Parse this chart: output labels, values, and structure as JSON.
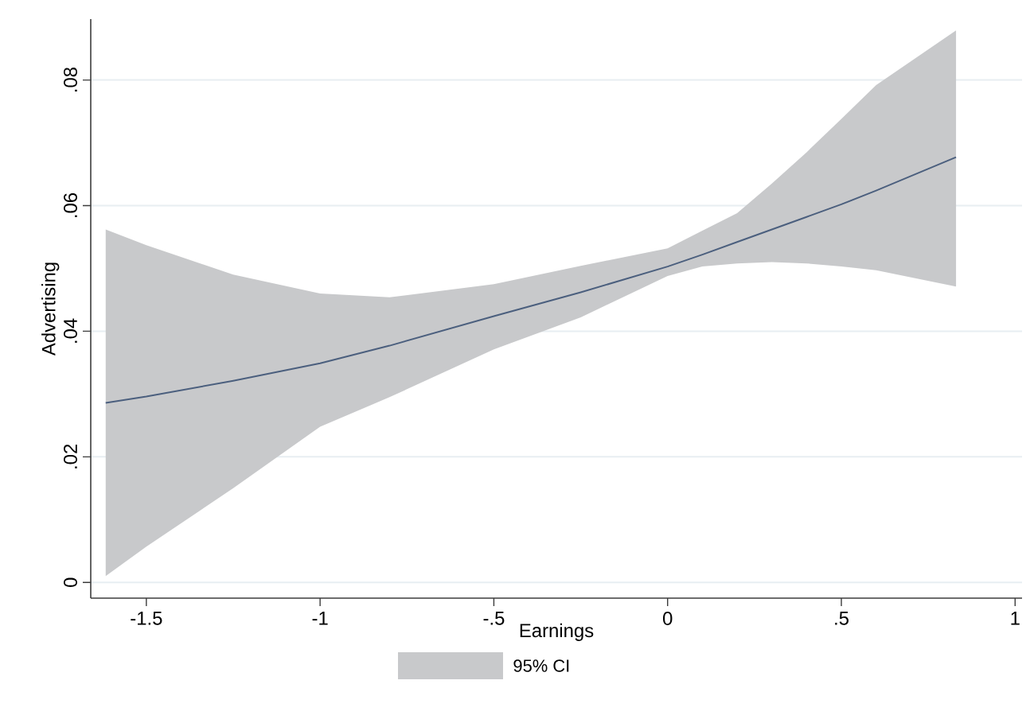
{
  "chart_data": {
    "type": "line",
    "xlabel": "Earnings",
    "ylabel": "Advertising",
    "xlim": [
      -1.66,
      1.02
    ],
    "ylim": [
      -0.0025,
      0.0897
    ],
    "xticks": [
      {
        "value": -1.5,
        "label": "-1.5"
      },
      {
        "value": -1,
        "label": "-1"
      },
      {
        "value": -0.5,
        "label": "-.5"
      },
      {
        "value": 0,
        "label": "0"
      },
      {
        "value": 0.5,
        "label": ".5"
      },
      {
        "value": 1,
        "label": "1"
      }
    ],
    "yticks": [
      {
        "value": 0,
        "label": "0"
      },
      {
        "value": 0.02,
        "label": ".02"
      },
      {
        "value": 0.04,
        "label": ".04"
      },
      {
        "value": 0.06,
        "label": ".06"
      },
      {
        "value": 0.08,
        "label": ".08"
      }
    ],
    "grid": "y",
    "annotations": [
      "95% CI"
    ],
    "series": [
      {
        "color": "#4b5f7e",
        "x": [
          -1.617,
          -1.5,
          -1.25,
          -1,
          -0.8,
          -0.5,
          -0.25,
          0,
          0.1,
          0.2,
          0.3,
          0.4,
          0.5,
          0.6,
          0.83
        ],
        "values": [
          0.0286,
          0.0296,
          0.0321,
          0.0349,
          0.0377,
          0.0424,
          0.0462,
          0.0503,
          0.0522,
          0.0542,
          0.0562,
          0.0582,
          0.0602,
          0.0624,
          0.0677
        ],
        "lower": [
          0.001,
          0.0057,
          0.015,
          0.0248,
          0.0295,
          0.0371,
          0.0422,
          0.0488,
          0.0503,
          0.0508,
          0.051,
          0.0508,
          0.0503,
          0.0497,
          0.0471
        ],
        "upper": [
          0.0562,
          0.0537,
          0.049,
          0.046,
          0.0454,
          0.0475,
          0.0504,
          0.0532,
          0.056,
          0.0588,
          0.0635,
          0.0685,
          0.0738,
          0.0792,
          0.0879
        ]
      }
    ]
  }
}
